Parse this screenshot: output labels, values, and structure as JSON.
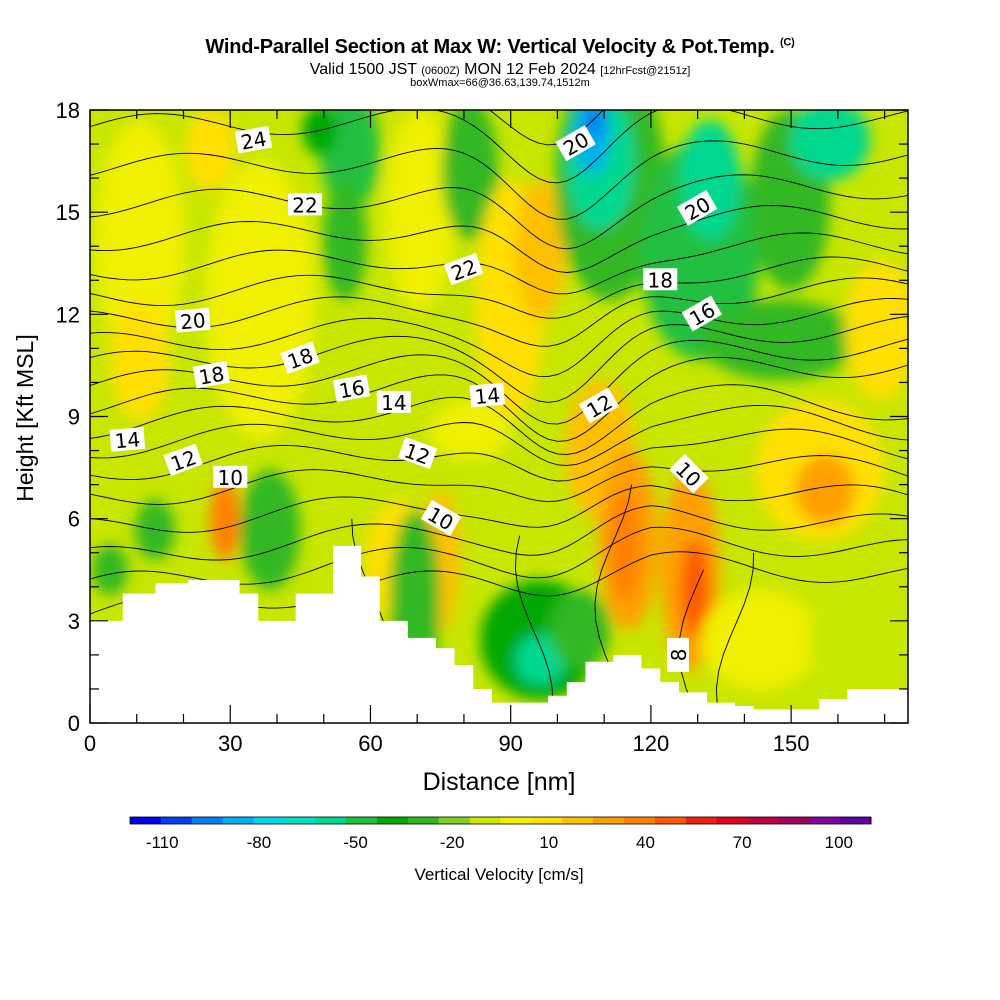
{
  "header": {
    "title": "Wind-Parallel Section at Max W: Vertical Velocity & Pot.Temp.",
    "copyright": "(C)",
    "valid_main": "Valid 1500 JST",
    "valid_utc": "(0600Z)",
    "valid_date": "MON 12 Feb 2024",
    "forecast": "[12hrFcst@2151z]",
    "box_info": "boxWmax=66@36.63,139.74,1512m"
  },
  "chart_data": {
    "type": "heatmap",
    "xlabel": "Distance [nm]",
    "ylabel": "Height [Kft MSL]",
    "xlim": [
      0,
      175
    ],
    "ylim": [
      0,
      18
    ],
    "x_ticks": [
      0,
      30,
      60,
      90,
      120,
      150
    ],
    "y_ticks": [
      0,
      3,
      6,
      9,
      12,
      15,
      18
    ],
    "colorbar": {
      "label": "Vertical Velocity [cm/s]",
      "range": [
        -120,
        110
      ],
      "tick_labels": [
        -110,
        -80,
        -50,
        -20,
        10,
        40,
        70,
        100
      ],
      "colors": [
        "#0000f0",
        "#0040f0",
        "#0080f0",
        "#00b0f0",
        "#00d8f0",
        "#00e0c0",
        "#00d890",
        "#20c040",
        "#00a800",
        "#30b820",
        "#80d020",
        "#c8e800",
        "#f0f000",
        "#ffe000",
        "#ffc000",
        "#ffa000",
        "#ff8000",
        "#ff5800",
        "#f02010",
        "#e00020",
        "#c00040",
        "#a00060",
        "#8000a0",
        "#6000a0"
      ]
    },
    "theta_contour_labels": [
      24,
      22,
      22,
      20,
      20,
      20,
      18,
      18,
      18,
      16,
      16,
      14,
      14,
      14,
      12,
      12,
      12,
      10,
      10,
      10,
      8
    ],
    "terrain_profile": {
      "x": [
        0,
        7,
        14,
        21,
        28,
        32,
        36,
        44,
        52,
        58,
        62,
        68,
        74,
        78,
        82,
        86,
        90,
        94,
        98,
        102,
        106,
        112,
        118,
        122,
        126,
        132,
        138,
        142,
        150,
        156,
        162,
        170,
        175
      ],
      "y": [
        3.0,
        3.8,
        4.1,
        4.2,
        4.2,
        3.8,
        3.0,
        3.8,
        5.2,
        4.3,
        3.0,
        2.5,
        2.2,
        1.7,
        1.0,
        0.6,
        0.6,
        0.6,
        0.8,
        1.2,
        1.8,
        2.0,
        1.6,
        1.2,
        0.9,
        0.6,
        0.5,
        0.4,
        0.4,
        0.7,
        1.0,
        1.0,
        1.0
      ]
    },
    "grid": false
  }
}
